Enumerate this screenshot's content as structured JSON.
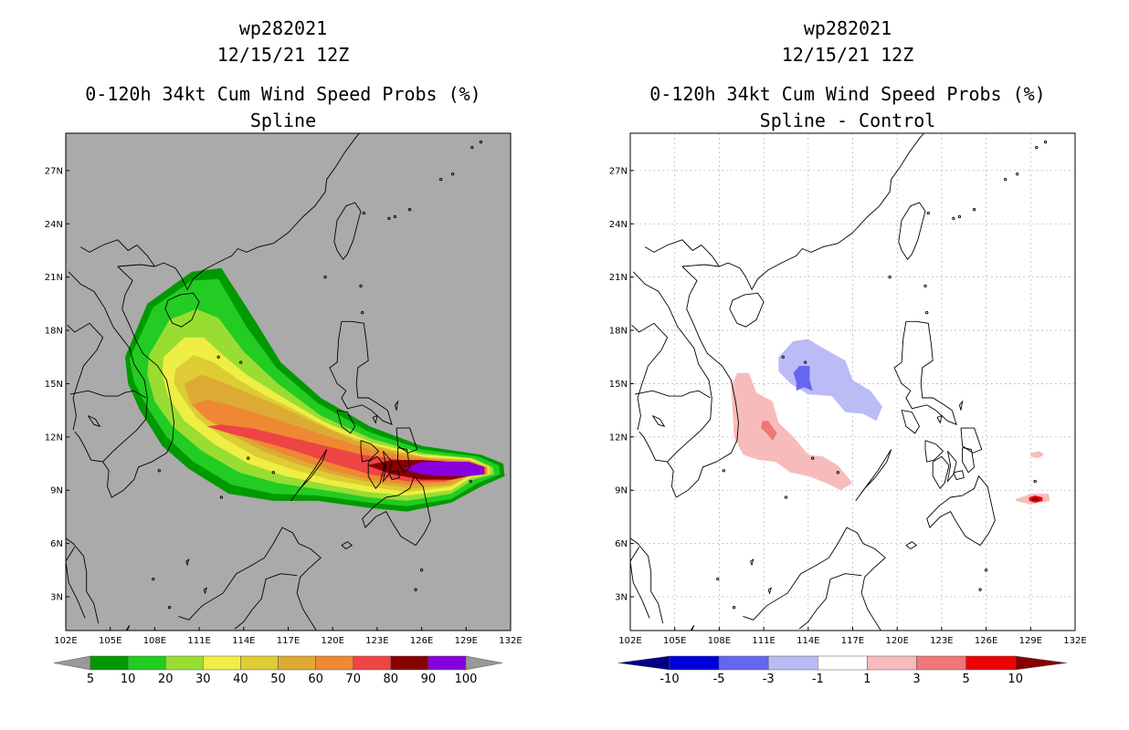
{
  "left_panel": {
    "title_lines": [
      "wp282021",
      "12/15/21 12Z",
      "0-120h 34kt Cum Wind Speed Probs (%)",
      "Spline"
    ],
    "legend": {
      "labels": [
        "5",
        "10",
        "20",
        "30",
        "40",
        "50",
        "60",
        "70",
        "80",
        "90",
        "100"
      ],
      "colors": [
        "#009900",
        "#22cc22",
        "#99dd33",
        "#eeee44",
        "#ddcc33",
        "#ddaa33",
        "#ee8833",
        "#ee4444",
        "#880000",
        "#8800dd"
      ],
      "end_color": "#999999"
    }
  },
  "right_panel": {
    "title_lines": [
      "wp282021",
      "12/15/21 12Z",
      "0-120h 34kt Cum Wind Speed Probs (%)",
      "Spline - Control"
    ],
    "legend": {
      "labels": [
        "-10",
        "-5",
        "-3",
        "-1",
        "1",
        "3",
        "5",
        "10"
      ],
      "colors": [
        "#0000dd",
        "#6666ee",
        "#bbbbf5",
        "#ffffff",
        "#f8bbbb",
        "#ee7777",
        "#ee0000"
      ],
      "low_color": "#000088",
      "high_color": "#880000"
    }
  },
  "axes": {
    "lat_ticks": [
      "3N",
      "6N",
      "9N",
      "12N",
      "15N",
      "18N",
      "21N",
      "24N",
      "27N"
    ],
    "lon_ticks": [
      "102E",
      "105E",
      "108E",
      "111E",
      "114E",
      "117E",
      "120E",
      "123E",
      "126E",
      "129E",
      "132E"
    ],
    "lat_values": [
      3,
      6,
      9,
      12,
      15,
      18,
      21,
      24,
      27
    ],
    "lon_values": [
      102,
      105,
      108,
      111,
      114,
      117,
      120,
      123,
      126,
      129,
      132
    ],
    "lon_range": [
      102,
      132
    ],
    "lat_range": [
      1.1,
      29.1
    ]
  },
  "map_colors": {
    "land_background": "#aaaaaa",
    "coast": "#000000",
    "grid": "#bbbbbb"
  },
  "probability_field": {
    "contour_levels": [
      5,
      10,
      20,
      30,
      40,
      50,
      60,
      70,
      80,
      90
    ],
    "colors": [
      "#009900",
      "#22cc22",
      "#99dd33",
      "#eeee44",
      "#ddcc33",
      "#ddaa33",
      "#ee8833",
      "#ee4444",
      "#880000",
      "#8800dd"
    ]
  },
  "difference_field": {
    "negative_colors": [
      "#bbbbf5",
      "#6666ee"
    ],
    "positive_colors": [
      "#f8bbbb",
      "#ee7777",
      "#ee0000",
      "#880000"
    ]
  }
}
